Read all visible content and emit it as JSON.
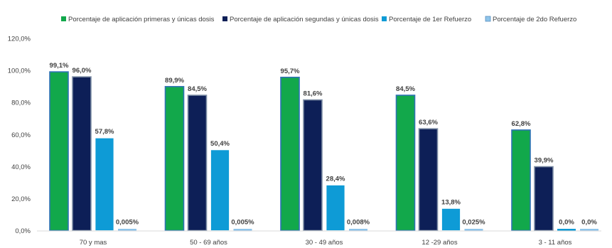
{
  "chart_data": {
    "type": "bar",
    "title": "",
    "xlabel": "",
    "ylabel": "",
    "ylim": [
      0,
      120
    ],
    "yticks": [
      "0,0%",
      "20,0%",
      "40,0%",
      "60,0%",
      "80,0%",
      "100,0%",
      "120,0%"
    ],
    "grid": false,
    "legend_position": "top",
    "categories": [
      "70  y mas",
      "50 - 69 años",
      "30 - 49 años",
      "12 -29 años",
      "3 - 11 años"
    ],
    "series": [
      {
        "name": "Porcentaje de aplicación primeras y únicas dosis",
        "color": "#12A84B",
        "values": [
          99.1,
          89.9,
          95.7,
          84.5,
          62.8
        ],
        "labels": [
          "99,1%",
          "89,9%",
          "95,7%",
          "84,5%",
          "62,8%"
        ]
      },
      {
        "name": "Porcentaje de aplicación segundas y únicas dosis",
        "color": "#0D1F57",
        "values": [
          96.0,
          84.5,
          81.6,
          63.6,
          39.9
        ],
        "labels": [
          "96,0%",
          "84,5%",
          "81,6%",
          "63,6%",
          "39,9%"
        ]
      },
      {
        "name": "Porcentaje de 1er Refuerzo",
        "color": "#0E9BD6",
        "values": [
          57.8,
          50.4,
          28.4,
          13.8,
          0.0
        ],
        "labels": [
          "57,8%",
          "50,4%",
          "28,4%",
          "13,8%",
          "0,0%"
        ]
      },
      {
        "name": "Porcentaje de 2do Refuerzo",
        "color": "#8EC4EA",
        "values": [
          0.005,
          0.005,
          0.008,
          0.025,
          0.0
        ],
        "labels": [
          "0,005%",
          "0,005%",
          "0,008%",
          "0,025%",
          "0,0%"
        ]
      }
    ]
  }
}
